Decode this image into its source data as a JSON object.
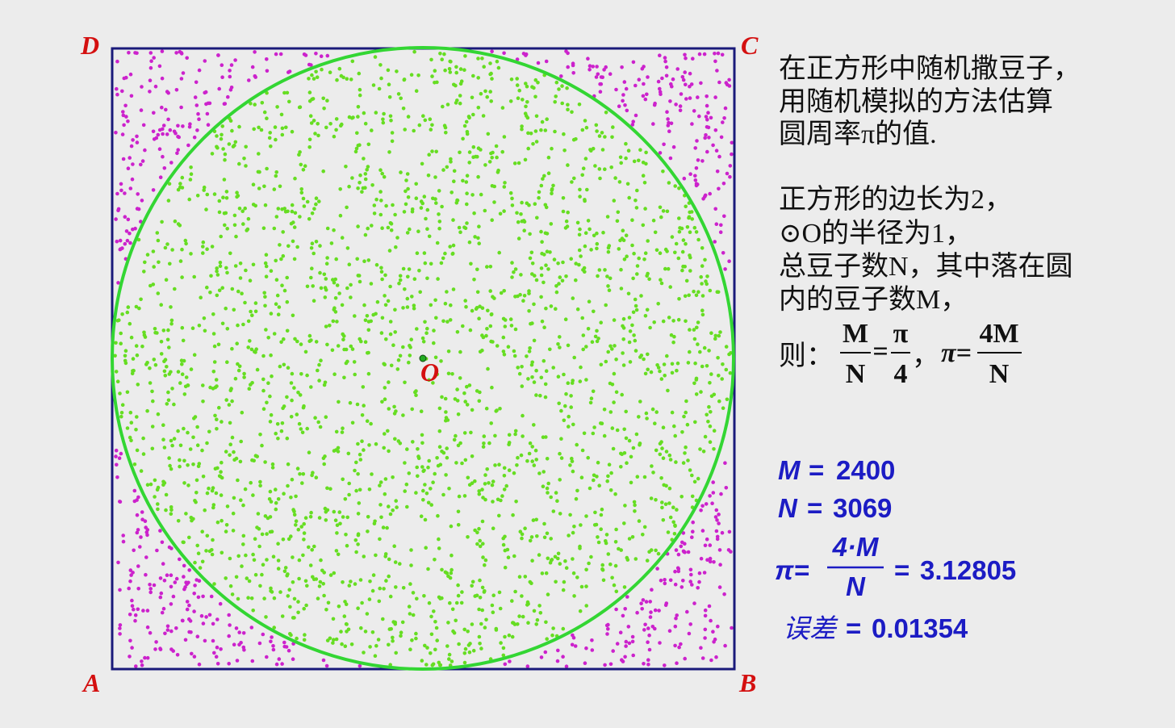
{
  "points": {
    "A": "A",
    "B": "B",
    "C": "C",
    "D": "D",
    "O": "O"
  },
  "description": [
    "在正方形中随机撒豆子，",
    "用随机模拟的方法估算",
    "圆周率π的值."
  ],
  "explanation": [
    "正方形的边长为2，",
    "⊙O的半径为1，",
    "总豆子数N，其中落在圆",
    "内的豆子数M，"
  ],
  "formula": {
    "prefix": "则：",
    "frac1": {
      "num": "M",
      "den": "N"
    },
    "eq": "=",
    "frac2": {
      "num": "π",
      "den": "4"
    },
    "sep": "，",
    "lhs": "π=",
    "frac3": {
      "num": "4M",
      "den": "N"
    }
  },
  "results": {
    "eq": "=",
    "M": {
      "symbol": "M",
      "value": 2400
    },
    "N": {
      "symbol": "N",
      "value": 3069
    },
    "pi": {
      "symbol": "π=",
      "num": "4·M",
      "den": "N",
      "value": 3.12805
    },
    "error": {
      "symbol": "误差",
      "value": 0.01354
    }
  }
}
